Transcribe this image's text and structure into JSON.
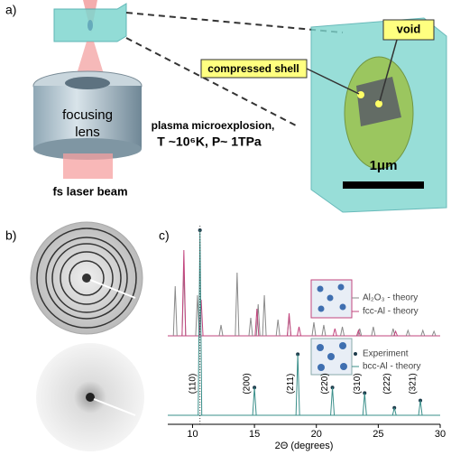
{
  "figure": {
    "panel_labels": {
      "a": "a)",
      "b": "b)",
      "c": "c)"
    }
  },
  "panel_a": {
    "lens_label": [
      "focusing",
      "lens"
    ],
    "beam_label": "fs laser beam",
    "conditions": [
      "plasma microexplosion,",
      "T ~10⁶K, P~ 1TPa"
    ],
    "callouts": [
      "compressed shell",
      "void"
    ],
    "scale_bar": "1μm"
  },
  "chart_data": {
    "type": "line",
    "xlabel": "2Θ (degrees)",
    "xlim": [
      8,
      30
    ],
    "xticks": [
      10,
      15,
      20,
      25,
      30
    ],
    "series": [
      {
        "name": "Al₂O₃ - theory",
        "color": "#8a8a8a",
        "x": [
          8.6,
          9.3,
          10.4,
          12.3,
          13.6,
          14.7,
          15.3,
          15.8,
          16.9,
          17.8,
          19.8,
          20.6,
          22.1,
          23.5,
          24.6,
          26.2,
          27.4,
          28.6,
          29.5
        ],
        "values": [
          55,
          75,
          45,
          12,
          70,
          20,
          35,
          45,
          18,
          22,
          15,
          12,
          10,
          8,
          10,
          8,
          6,
          6,
          5
        ]
      },
      {
        "name": "fcc-Al - theory",
        "color": "#c2457e",
        "x": [
          9.3,
          10.7,
          15.2,
          17.8,
          18.6,
          21.5,
          23.4,
          26.4
        ],
        "values": [
          95,
          40,
          30,
          25,
          10,
          8,
          6,
          5
        ]
      },
      {
        "name": "Experiment",
        "color": "#1d3a4a",
        "x": [
          10.6,
          15.0,
          18.5,
          21.3,
          23.9,
          26.3,
          28.4
        ],
        "values": [
          100,
          15,
          33,
          15,
          12,
          4,
          8
        ]
      },
      {
        "name": "bcc-Al - theory",
        "color": "#3a8f8a",
        "x": [
          10.6,
          15.0,
          18.5,
          21.3,
          23.9,
          26.3,
          28.4
        ],
        "values": [
          100,
          15,
          33,
          15,
          12,
          4,
          8
        ]
      }
    ],
    "peak_labels": {
      "x": [
        10.6,
        15.0,
        18.5,
        21.3,
        23.9,
        26.3,
        28.4
      ],
      "labels": [
        "(110)",
        "(200)",
        "(211)",
        "(220)",
        "(310)",
        "(222)",
        "(321)"
      ]
    }
  }
}
